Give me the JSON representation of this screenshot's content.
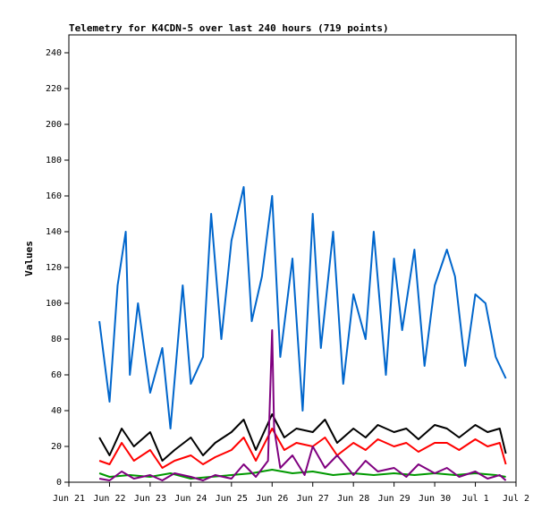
{
  "chart_data": {
    "type": "line",
    "title": "Telemetry for K4CDN-5 over last 240 hours (719 points)",
    "xlabel": "",
    "ylabel": "Values",
    "ylim": [
      0,
      250
    ],
    "y_ticks": [
      0,
      20,
      40,
      60,
      80,
      100,
      120,
      140,
      160,
      180,
      200,
      220,
      240
    ],
    "x_tick_labels": [
      "Jun 21",
      "Jun 22",
      "Jun 23",
      "Jun 24",
      "Jun 25",
      "Jun 26",
      "Jun 27",
      "Jun 28",
      "Jun 29",
      "Jun 30",
      "Jul 1",
      "Jul 2"
    ],
    "grid": false,
    "legend": "none",
    "series": [
      {
        "color": "#0066cc",
        "x": [
          21.75,
          22.0,
          22.2,
          22.4,
          22.5,
          22.7,
          23.0,
          23.3,
          23.5,
          23.8,
          24.0,
          24.3,
          24.5,
          24.75,
          25.0,
          25.3,
          25.5,
          25.75,
          26.0,
          26.2,
          26.5,
          26.75,
          27.0,
          27.2,
          27.5,
          27.75,
          28.0,
          28.3,
          28.5,
          28.8,
          29.0,
          29.2,
          29.5,
          29.75,
          30.0,
          30.3,
          30.5,
          30.75,
          31.0,
          31.25,
          31.5,
          31.75
        ],
        "y": [
          90,
          45,
          110,
          140,
          60,
          100,
          50,
          75,
          30,
          110,
          55,
          70,
          150,
          80,
          135,
          165,
          90,
          115,
          160,
          70,
          125,
          40,
          150,
          75,
          140,
          55,
          105,
          80,
          140,
          60,
          125,
          85,
          130,
          65,
          110,
          130,
          115,
          65,
          105,
          100,
          70,
          58
        ]
      },
      {
        "color": "#000000",
        "x": [
          21.75,
          22.0,
          22.3,
          22.6,
          23.0,
          23.3,
          23.6,
          24.0,
          24.3,
          24.6,
          25.0,
          25.3,
          25.6,
          26.0,
          26.3,
          26.6,
          27.0,
          27.3,
          27.6,
          28.0,
          28.3,
          28.6,
          29.0,
          29.3,
          29.6,
          30.0,
          30.3,
          30.6,
          31.0,
          31.3,
          31.6,
          31.75
        ],
        "y": [
          25,
          15,
          30,
          20,
          28,
          12,
          18,
          25,
          15,
          22,
          28,
          35,
          18,
          38,
          25,
          30,
          28,
          35,
          22,
          30,
          25,
          32,
          28,
          30,
          24,
          32,
          30,
          25,
          32,
          28,
          30,
          16
        ]
      },
      {
        "color": "#ff0000",
        "x": [
          21.75,
          22.0,
          22.3,
          22.6,
          23.0,
          23.3,
          23.6,
          24.0,
          24.3,
          24.6,
          25.0,
          25.3,
          25.6,
          26.0,
          26.3,
          26.6,
          27.0,
          27.3,
          27.6,
          28.0,
          28.3,
          28.6,
          29.0,
          29.3,
          29.6,
          30.0,
          30.3,
          30.6,
          31.0,
          31.3,
          31.6,
          31.75
        ],
        "y": [
          12,
          10,
          22,
          12,
          18,
          8,
          12,
          15,
          10,
          14,
          18,
          25,
          12,
          30,
          18,
          22,
          20,
          25,
          15,
          22,
          18,
          24,
          20,
          22,
          17,
          22,
          22,
          18,
          24,
          20,
          22,
          10
        ]
      },
      {
        "color": "#009900",
        "x": [
          21.75,
          22.0,
          22.5,
          23.0,
          23.5,
          24.0,
          24.5,
          25.0,
          25.5,
          26.0,
          26.5,
          27.0,
          27.5,
          28.0,
          28.5,
          29.0,
          29.5,
          30.0,
          30.5,
          31.0,
          31.5,
          31.75
        ],
        "y": [
          5,
          3,
          4,
          3,
          5,
          2,
          3,
          4,
          5,
          7,
          5,
          6,
          4,
          5,
          4,
          5,
          4,
          5,
          4,
          5,
          4,
          3
        ]
      },
      {
        "color": "#7f007f",
        "x": [
          21.75,
          22.0,
          22.3,
          22.6,
          23.0,
          23.3,
          23.6,
          24.0,
          24.3,
          24.6,
          25.0,
          25.3,
          25.6,
          25.9,
          26.0,
          26.05,
          26.2,
          26.5,
          26.8,
          27.0,
          27.3,
          27.6,
          28.0,
          28.3,
          28.6,
          29.0,
          29.3,
          29.6,
          30.0,
          30.3,
          30.6,
          31.0,
          31.3,
          31.6,
          31.75
        ],
        "y": [
          2,
          1,
          6,
          2,
          4,
          1,
          5,
          3,
          1,
          4,
          2,
          10,
          3,
          12,
          85,
          30,
          8,
          15,
          4,
          20,
          8,
          15,
          4,
          12,
          6,
          8,
          3,
          10,
          5,
          8,
          3,
          6,
          2,
          4,
          1
        ]
      }
    ]
  }
}
